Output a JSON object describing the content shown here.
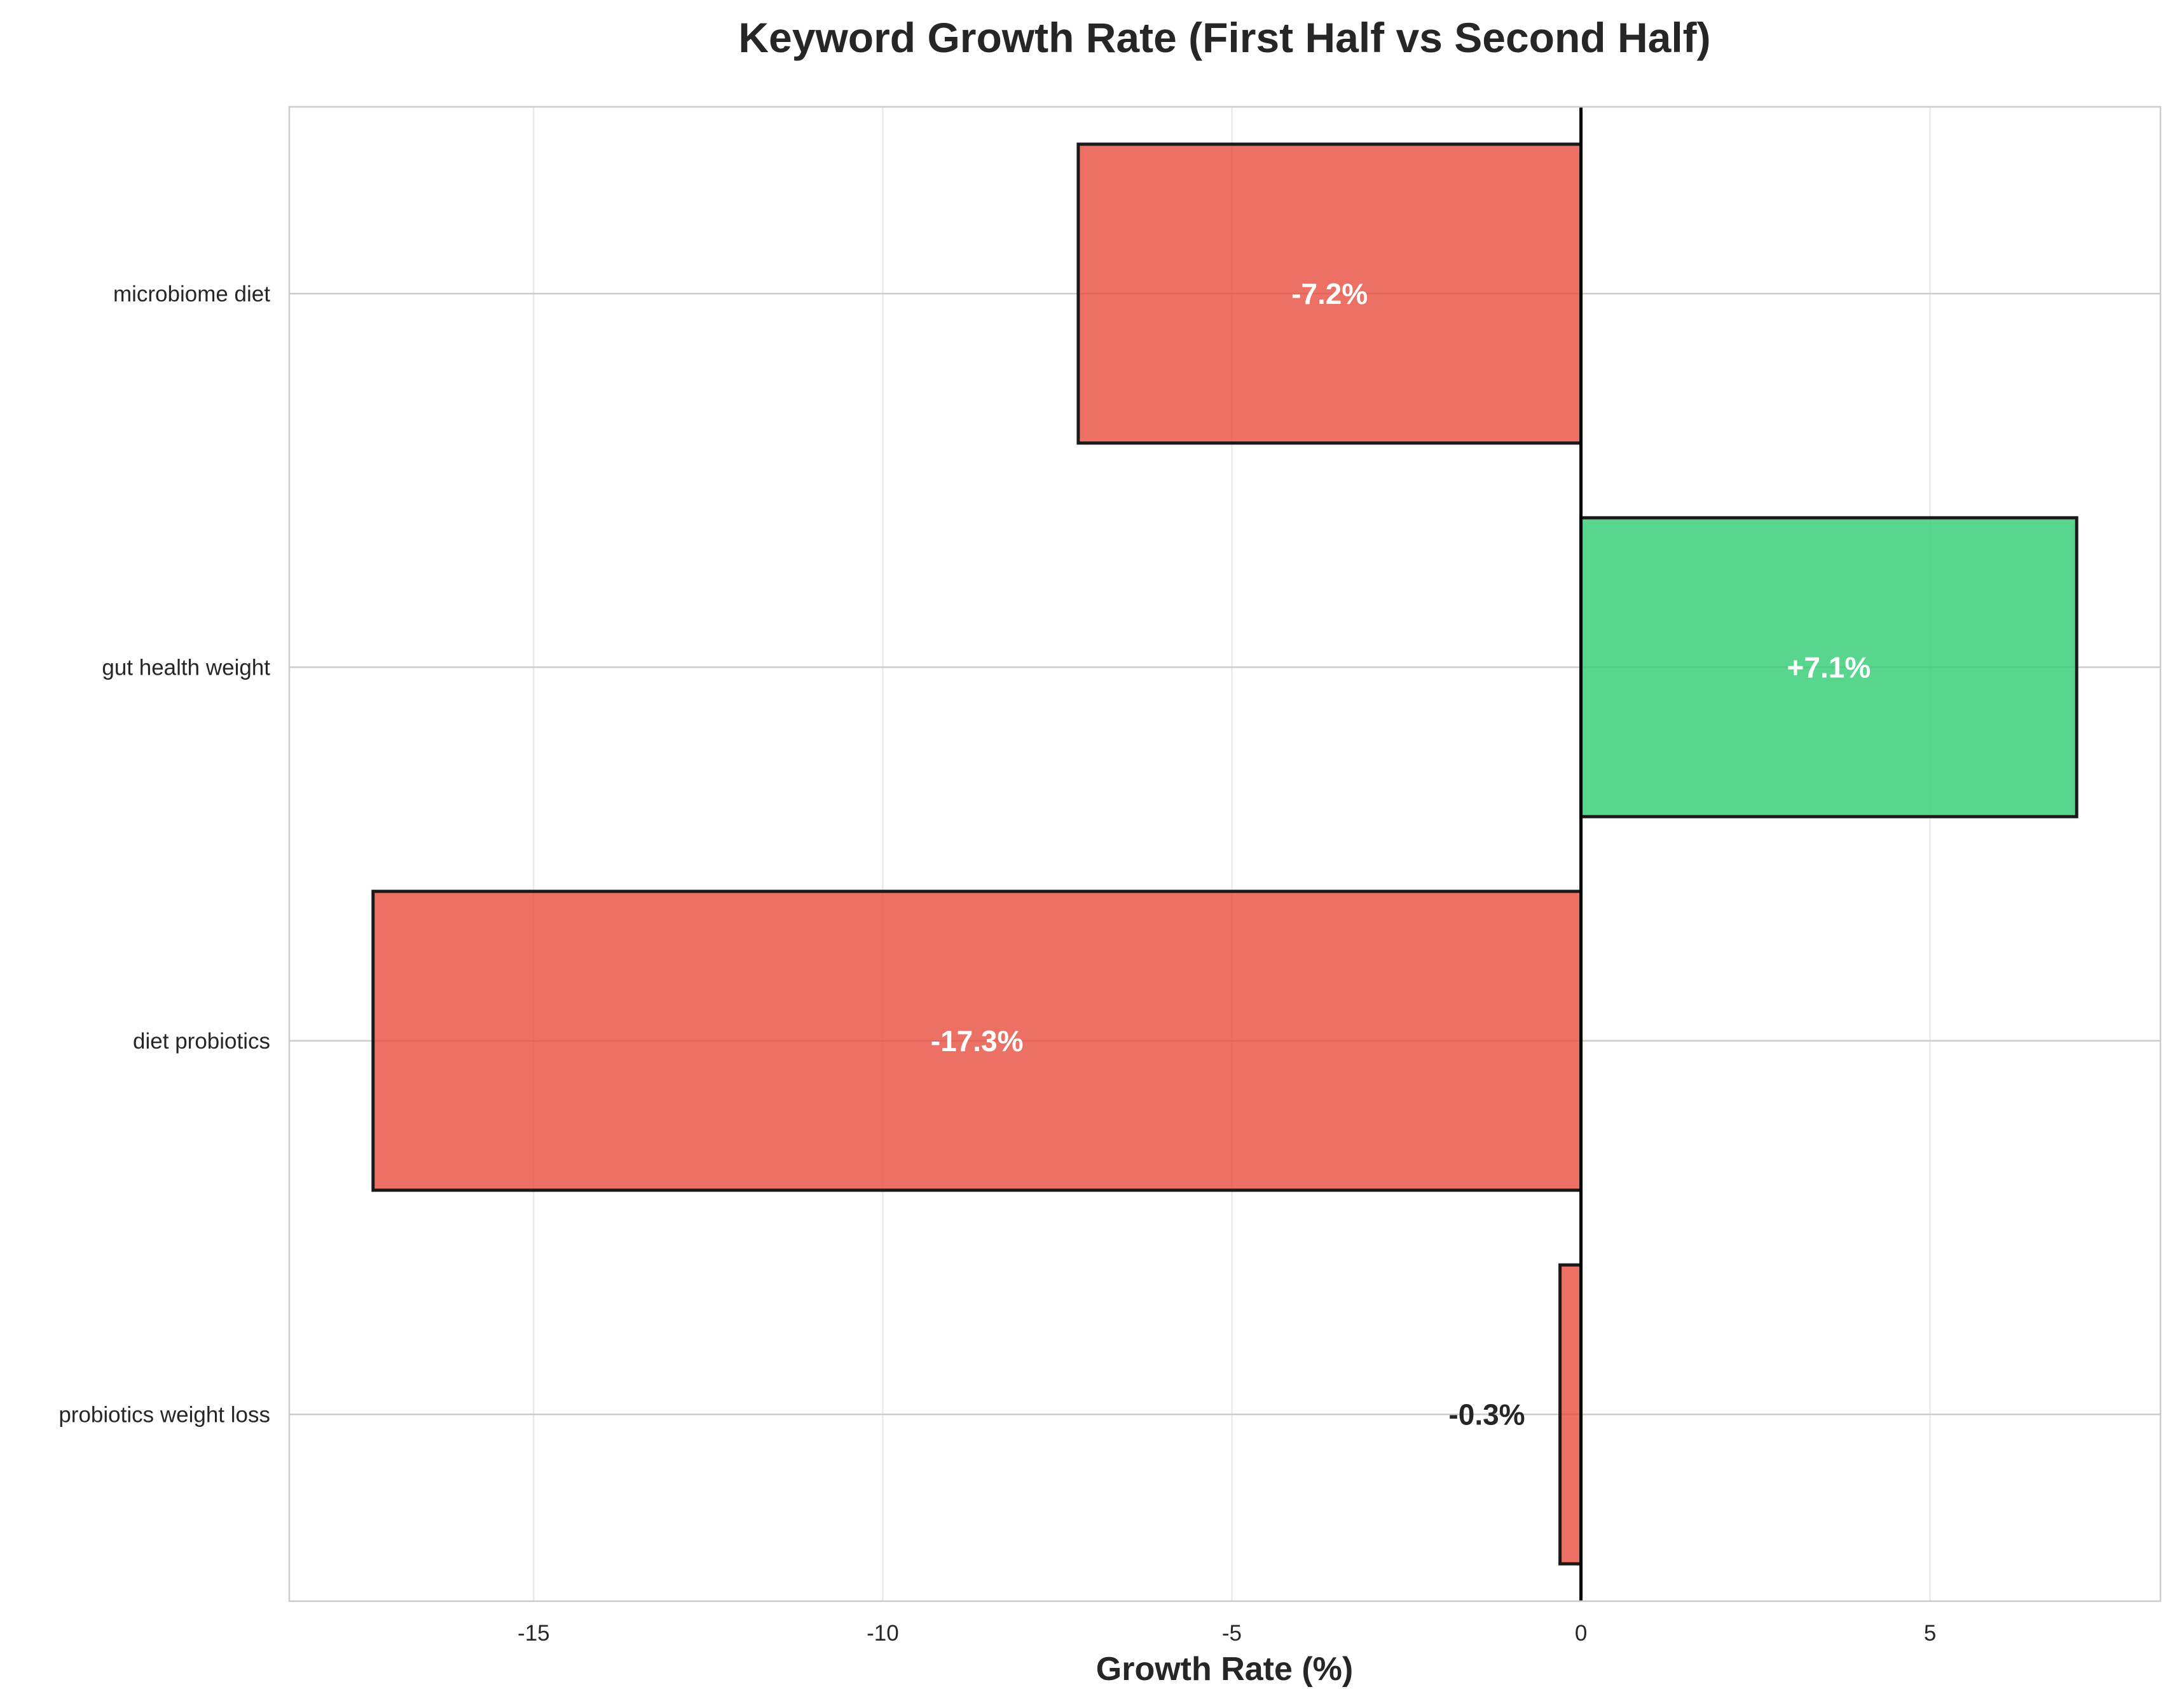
{
  "chart_data": {
    "type": "bar",
    "orientation": "horizontal",
    "title": "Keyword Growth Rate (First Half vs Second Half)",
    "xlabel": "Growth Rate (%)",
    "ylabel": "",
    "categories": [
      "microbiome diet",
      "gut health weight",
      "diet probiotics",
      "probiotics weight loss"
    ],
    "values": [
      -7.2,
      7.1,
      -17.3,
      -0.3
    ],
    "data_labels": [
      "-7.2%",
      "+7.1%",
      "-17.3%",
      "-0.3%"
    ],
    "xlim": [
      -18.5,
      8.3
    ],
    "xticks": [
      -15,
      -10,
      -5,
      0,
      5
    ],
    "xtick_labels": [
      "-15",
      "-10",
      "-5",
      "0",
      "5"
    ],
    "grid": true,
    "colors": {
      "positive": "#2ecc71",
      "negative": "#e74c3c",
      "bar_edge": "#1a1a1a",
      "zero_line": "#000000",
      "grid": "#e6e6e6",
      "frame": "#cccccc",
      "inside_label": "#ffffff",
      "outside_label": "#262626"
    }
  }
}
